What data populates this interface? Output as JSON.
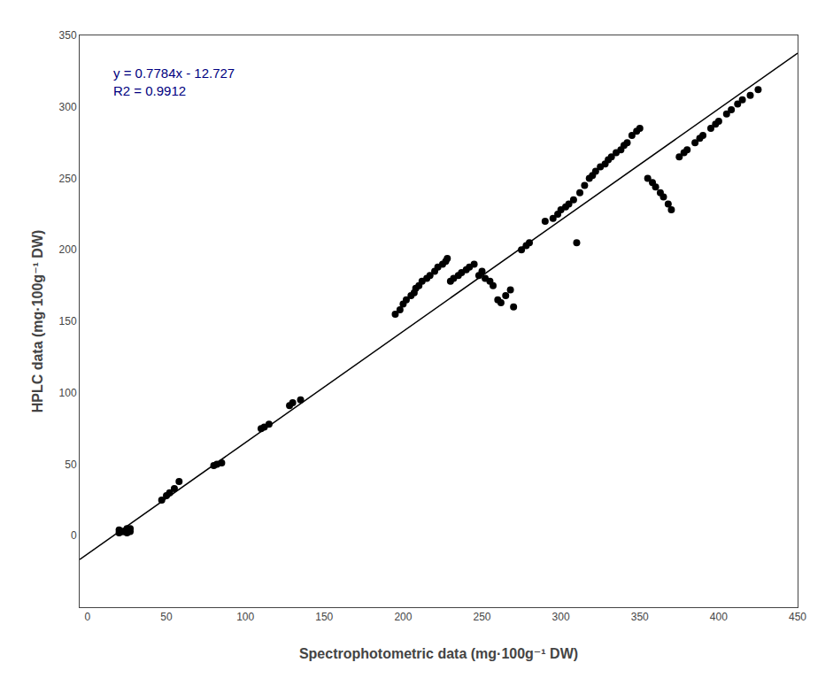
{
  "chart_data": {
    "type": "scatter",
    "xlabel": "Spectrophotometric data (mg·100g⁻¹ DW)",
    "ylabel": "HPLC data (mg·100g⁻¹ DW)",
    "series": [
      {
        "type": "scatter",
        "color": "#000000",
        "x": [
          20,
          20,
          22,
          23,
          25,
          25,
          25,
          27,
          27,
          47,
          50,
          52,
          55,
          58,
          80,
          82,
          85,
          110,
          112,
          115,
          128,
          130,
          135,
          195,
          198,
          200,
          202,
          205,
          207,
          208,
          210,
          212,
          215,
          217,
          220,
          222,
          225,
          227,
          228,
          230,
          232,
          235,
          237,
          240,
          242,
          245,
          248,
          250,
          252,
          255,
          257,
          260,
          262,
          265,
          268,
          270,
          275,
          278,
          280,
          290,
          295,
          298,
          300,
          303,
          305,
          308,
          310,
          312,
          315,
          318,
          320,
          322,
          325,
          328,
          330,
          332,
          335,
          338,
          340,
          342,
          345,
          348,
          350,
          355,
          358,
          360,
          363,
          365,
          368,
          370,
          375,
          378,
          380,
          385,
          388,
          390,
          395,
          398,
          400,
          405,
          408,
          412,
          415,
          420,
          425
        ],
        "values": [
          2,
          4,
          3,
          3,
          2,
          4,
          5,
          3,
          5,
          25,
          28,
          30,
          33,
          38,
          49,
          50,
          51,
          75,
          76,
          78,
          91,
          93,
          95,
          155,
          158,
          162,
          165,
          168,
          170,
          173,
          175,
          178,
          180,
          182,
          185,
          188,
          190,
          192,
          194,
          178,
          180,
          182,
          184,
          186,
          188,
          190,
          182,
          185,
          180,
          178,
          175,
          165,
          163,
          168,
          172,
          160,
          200,
          203,
          205,
          220,
          222,
          225,
          228,
          230,
          232,
          235,
          205,
          240,
          245,
          250,
          252,
          255,
          258,
          260,
          263,
          265,
          268,
          270,
          273,
          275,
          280,
          283,
          285,
          250,
          247,
          244,
          240,
          237,
          232,
          228,
          265,
          268,
          270,
          275,
          278,
          280,
          285,
          288,
          290,
          295,
          298,
          302,
          305,
          308,
          312
        ]
      },
      {
        "type": "line",
        "color": "#000000",
        "x": [
          -5,
          450
        ],
        "values": [
          -16.619,
          337.553
        ]
      }
    ],
    "annotations": [
      {
        "text": "y = 0.7784x - 12.727\nR2 = 0.9912",
        "x": 15,
        "y": 330,
        "color": "#000080"
      }
    ],
    "xlim": [
      -5,
      450
    ],
    "ylim": [
      -50,
      350
    ],
    "xticks": [
      0,
      50,
      100,
      150,
      200,
      250,
      300,
      350,
      400,
      450
    ],
    "yticks": [
      0,
      50,
      100,
      150,
      200,
      250,
      300,
      350
    ],
    "grid": false
  }
}
